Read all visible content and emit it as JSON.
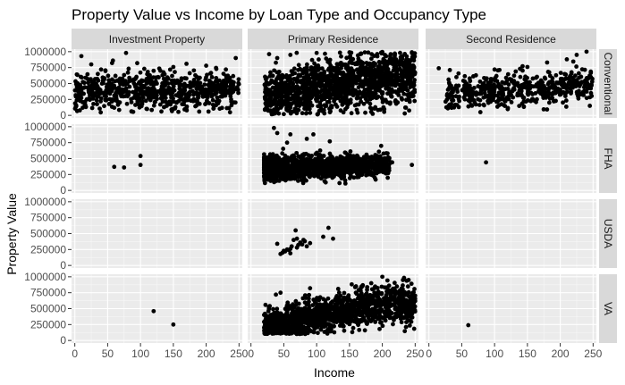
{
  "chart_data": {
    "type": "scatter",
    "title": "Property Value vs Income by Loan Type and Occupancy Type",
    "xlabel": "Income",
    "ylabel": "Property Value",
    "xlim": [
      -5,
      255
    ],
    "ylim": [
      0,
      1000000
    ],
    "x_ticks": [
      "0",
      "50",
      "100",
      "150",
      "200",
      "250"
    ],
    "y_ticks": [
      "0",
      "250000",
      "500000",
      "750000",
      "1000000"
    ],
    "x_tick_values": [
      0,
      50,
      100,
      150,
      200,
      250
    ],
    "y_tick_values": [
      0,
      250000,
      500000,
      750000,
      1000000
    ],
    "grid": true,
    "facet_columns": [
      "Investment Property",
      "Primary Residence",
      "Second Residence"
    ],
    "facet_rows": [
      "Conventional",
      "FHA",
      "USDA",
      "VA"
    ],
    "point_color": "#000000",
    "panel_background": "#ebebeb",
    "strip_background": "#d9d9d9",
    "panels": [
      {
        "row": "Conventional",
        "col": "Investment Property",
        "density": "dense",
        "approx_x_range": [
          0,
          250
        ],
        "approx_y_range": [
          40000,
          1000000
        ],
        "points": [
          [
            10,
            930000
          ],
          [
            25,
            800000
          ],
          [
            40,
            720000
          ],
          [
            58,
            860000
          ],
          [
            78,
            980000
          ],
          [
            95,
            820000
          ],
          [
            120,
            700000
          ],
          [
            150,
            760000
          ],
          [
            170,
            810000
          ],
          [
            200,
            780000
          ],
          [
            230,
            720000
          ],
          [
            245,
            900000
          ],
          [
            35,
            650000
          ],
          [
            60,
            120000
          ],
          [
            110,
            100000
          ],
          [
            140,
            150000
          ],
          [
            190,
            180000
          ],
          [
            215,
            160000
          ],
          [
            5,
            300000
          ],
          [
            15,
            150000
          ],
          [
            12,
            120000
          ]
        ]
      },
      {
        "row": "Conventional",
        "col": "Primary Residence",
        "density": "dense",
        "approx_x_range": [
          20,
          250
        ],
        "approx_y_range": [
          10000,
          1000000
        ],
        "points": [
          [
            30,
            150000
          ],
          [
            40,
            900000
          ],
          [
            60,
            950000
          ],
          [
            100,
            980000
          ],
          [
            150,
            990000
          ],
          [
            200,
            995000
          ],
          [
            245,
            990000
          ],
          [
            25,
            100000
          ],
          [
            35,
            50000
          ],
          [
            50,
            20000
          ],
          [
            245,
            300000
          ],
          [
            230,
            250000
          ]
        ]
      },
      {
        "row": "Conventional",
        "col": "Second Residence",
        "density": "dense",
        "approx_x_range": [
          15,
          250
        ],
        "approx_y_range": [
          50000,
          1000000
        ],
        "points": [
          [
            15,
            740000
          ],
          [
            210,
            880000
          ],
          [
            225,
            950000
          ],
          [
            240,
            1000000
          ],
          [
            180,
            830000
          ],
          [
            150,
            760000
          ],
          [
            100,
            720000
          ],
          [
            245,
            150000
          ],
          [
            30,
            150000
          ]
        ]
      },
      {
        "row": "FHA",
        "col": "Investment Property",
        "density": "sparse",
        "points": [
          [
            60,
            370000
          ],
          [
            75,
            360000
          ],
          [
            100,
            540000
          ],
          [
            100,
            400000
          ]
        ]
      },
      {
        "row": "FHA",
        "col": "Primary Residence",
        "density": "dense",
        "approx_x_range": [
          20,
          245
        ],
        "approx_y_range": [
          100000,
          1000000
        ],
        "points": [
          [
            35,
            980000
          ],
          [
            40,
            900000
          ],
          [
            55,
            750000
          ],
          [
            60,
            880000
          ],
          [
            95,
            880000
          ],
          [
            120,
            770000
          ],
          [
            85,
            810000
          ],
          [
            200,
            420000
          ],
          [
            215,
            440000
          ],
          [
            245,
            400000
          ],
          [
            20,
            520000
          ],
          [
            30,
            150000
          ]
        ]
      },
      {
        "row": "FHA",
        "col": "Second Residence",
        "density": "sparse",
        "points": [
          [
            87,
            440000
          ]
        ]
      },
      {
        "row": "USDA",
        "col": "Investment Property",
        "density": "empty",
        "points": []
      },
      {
        "row": "USDA",
        "col": "Primary Residence",
        "density": "sparse",
        "points": [
          [
            40,
            340000
          ],
          [
            45,
            180000
          ],
          [
            48,
            200000
          ],
          [
            52,
            220000
          ],
          [
            55,
            250000
          ],
          [
            58,
            240000
          ],
          [
            60,
            260000
          ],
          [
            62,
            300000
          ],
          [
            65,
            400000
          ],
          [
            68,
            550000
          ],
          [
            70,
            420000
          ],
          [
            72,
            320000
          ],
          [
            75,
            360000
          ],
          [
            78,
            330000
          ],
          [
            80,
            400000
          ],
          [
            85,
            300000
          ],
          [
            90,
            350000
          ],
          [
            110,
            450000
          ],
          [
            118,
            590000
          ],
          [
            125,
            420000
          ],
          [
            60,
            190000
          ],
          [
            50,
            230000
          ],
          [
            70,
            280000
          ],
          [
            82,
            380000
          ]
        ]
      },
      {
        "row": "USDA",
        "col": "Second Residence",
        "density": "empty",
        "points": []
      },
      {
        "row": "VA",
        "col": "Investment Property",
        "density": "sparse",
        "points": [
          [
            120,
            460000
          ],
          [
            150,
            250000
          ]
        ]
      },
      {
        "row": "VA",
        "col": "Primary Residence",
        "density": "dense",
        "approx_x_range": [
          20,
          250
        ],
        "approx_y_range": [
          100000,
          1000000
        ],
        "points": [
          [
            38,
            720000
          ],
          [
            45,
            750000
          ],
          [
            245,
            500000
          ],
          [
            250,
            620000
          ],
          [
            240,
            950000
          ],
          [
            200,
            1000000
          ],
          [
            160,
            850000
          ],
          [
            130,
            680000
          ],
          [
            90,
            820000
          ]
        ]
      },
      {
        "row": "VA",
        "col": "Second Residence",
        "density": "sparse",
        "points": [
          [
            60,
            240000
          ]
        ]
      }
    ]
  }
}
